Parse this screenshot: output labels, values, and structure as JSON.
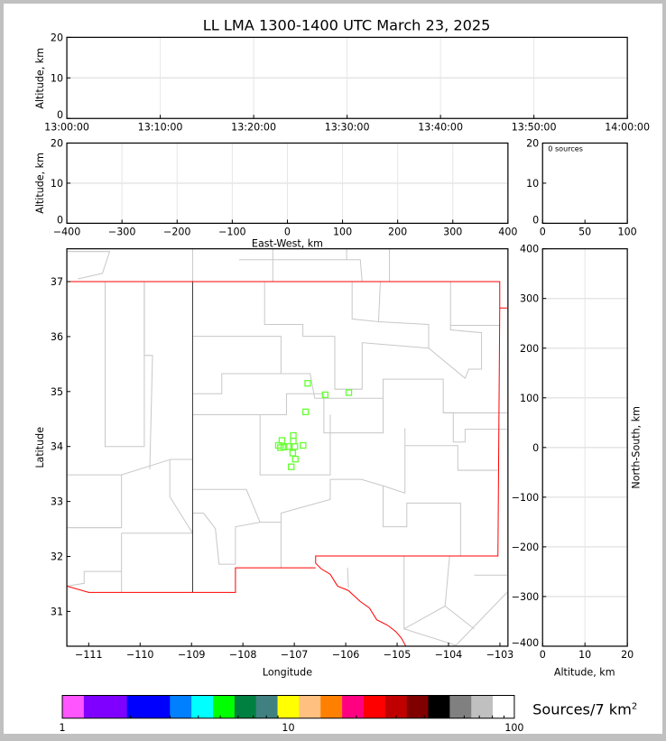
{
  "title": "LL LMA 1300-1400 UTC March 23, 2025",
  "chart_data": [
    {
      "type": "scatter",
      "panel": "altitude-time",
      "ylabel": "Altitude, km",
      "ylim": [
        0,
        20
      ],
      "yticks": [
        "0",
        "10",
        "20"
      ],
      "xticks": [
        "13:00:00",
        "13:10:00",
        "13:20:00",
        "13:30:00",
        "13:40:00",
        "13:50:00",
        "14:00:00"
      ],
      "grid": true,
      "points": []
    },
    {
      "type": "scatter",
      "panel": "altitude-eastwest",
      "xlabel": "East-West, km",
      "ylabel": "Altitude, km",
      "xlim": [
        -400,
        400
      ],
      "ylim": [
        0,
        20
      ],
      "xticks": [
        "−400",
        "−300",
        "−200",
        "−100",
        "0",
        "100",
        "200",
        "300",
        "400"
      ],
      "yticks": [
        "0",
        "10",
        "20"
      ],
      "grid": true,
      "points": []
    },
    {
      "type": "bar",
      "panel": "altitude-histogram",
      "annotation": "0 sources",
      "xlim": [
        0,
        100
      ],
      "ylim": [
        0,
        20
      ],
      "xticks": [
        "0",
        "50",
        "100"
      ],
      "yticks": [
        "0",
        "10",
        "20"
      ],
      "values": []
    },
    {
      "type": "scatter",
      "panel": "plan-view-map",
      "xlabel": "Longitude",
      "ylabel": "Latitude",
      "xlim": [
        -111.5,
        -102.9
      ],
      "ylim": [
        30.4,
        37.6
      ],
      "xticks": [
        "−111",
        "−110",
        "−109",
        "−108",
        "−107",
        "−106",
        "−105",
        "−104",
        "−103"
      ],
      "yticks": [
        "31",
        "32",
        "33",
        "34",
        "35",
        "36",
        "37"
      ],
      "station_color": "#66ff33",
      "stations": [
        [
          -106.74,
          35.15
        ],
        [
          -106.4,
          34.94
        ],
        [
          -105.94,
          34.98
        ],
        [
          -106.78,
          34.63
        ],
        [
          -107.02,
          34.2
        ],
        [
          -107.02,
          34.1
        ],
        [
          -107.31,
          34.02
        ],
        [
          -107.24,
          34.11
        ],
        [
          -107.27,
          33.98
        ],
        [
          -107.2,
          33.99
        ],
        [
          -107.12,
          34.0
        ],
        [
          -106.99,
          34.0
        ],
        [
          -106.83,
          34.02
        ],
        [
          -107.03,
          33.88
        ],
        [
          -106.98,
          33.77
        ],
        [
          -107.06,
          33.63
        ]
      ],
      "border_color": "#ff0000"
    },
    {
      "type": "scatter",
      "panel": "altitude-northsouth",
      "xlabel": "Altitude, km",
      "ylabel": "North-South, km",
      "xlim": [
        0,
        20
      ],
      "ylim": [
        -400,
        400
      ],
      "xticks": [
        "0",
        "10",
        "20"
      ],
      "yticks": [
        "−400",
        "−300",
        "−200",
        "−100",
        "0",
        "100",
        "200",
        "300",
        "400"
      ],
      "grid": true,
      "points": []
    }
  ],
  "colorbar": {
    "label": "Sources/7 km",
    "label_sup": "2",
    "scale": "log",
    "ticks": [
      "1",
      "10",
      "100"
    ],
    "colors": [
      "#ff55ff",
      "#7f00ff",
      "#0000ff",
      "#0080ff",
      "#00ffff",
      "#00ff00",
      "#008040",
      "#408080",
      "#ffff00",
      "#ffc080",
      "#ff8000",
      "#ff0080",
      "#ff0000",
      "#c00000",
      "#800000",
      "#000000",
      "#808080",
      "#c0c0c0",
      "#ffffff"
    ],
    "weights": [
      1,
      2,
      2,
      1,
      1,
      1,
      1,
      1,
      1,
      1,
      1,
      1,
      1,
      1,
      1,
      1,
      1,
      1,
      1
    ]
  }
}
